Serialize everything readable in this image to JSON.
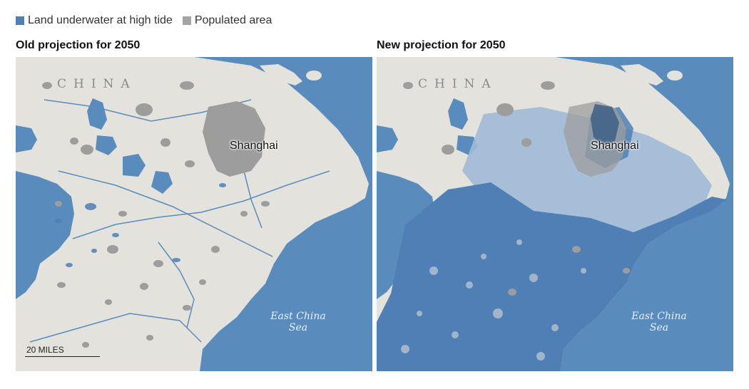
{
  "legend": {
    "items": [
      {
        "label": "Land underwater at high tide",
        "color": "#4f7fb5"
      },
      {
        "label": "Populated area",
        "color": "#a4a4a4"
      }
    ]
  },
  "colors": {
    "sea": "#5a8bbd",
    "land": "#e4e2dc",
    "populated": "#9d9d9d",
    "flood": "#4f7fb5",
    "flood_light": "#9ebad6"
  },
  "panels": [
    {
      "title": "Old projection for 2050",
      "country_label": "CHINA",
      "city_label": "Shanghai",
      "sea_label_line1": "East China",
      "sea_label_line2": "Sea",
      "scale_label": "20 MILES",
      "flood_extent": "minimal"
    },
    {
      "title": "New projection for 2050",
      "country_label": "CHINA",
      "city_label": "Shanghai",
      "sea_label_line1": "East China",
      "sea_label_line2": "Sea",
      "flood_extent": "extensive"
    }
  ]
}
